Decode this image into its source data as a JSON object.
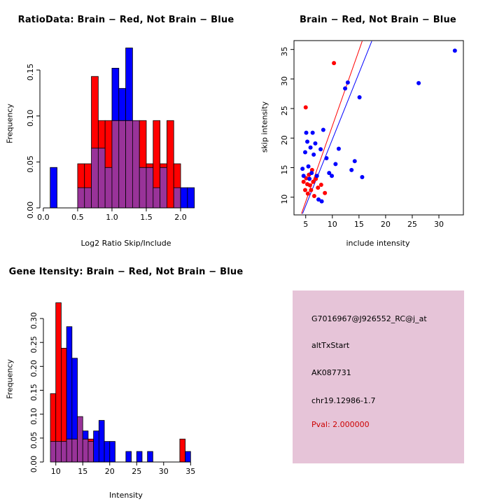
{
  "colors": {
    "brain": "#FF0000",
    "not_brain": "#0000FF",
    "overlap": "#993399",
    "axis": "#000000",
    "background": "#FFFFFF",
    "info_box_bg": "#E6C4D8",
    "pval": "#CC0000"
  },
  "chart_data": [
    {
      "id": "ratio_histogram",
      "type": "bar",
      "variant": "overlapping-histogram",
      "title": "RatioData: Brain − Red, Not Brain − Blue",
      "xlabel": "Log2 Ratio Skip/Include",
      "ylabel": "Frequency",
      "legend": "Brain = red, Not Brain = blue, overlap = purple",
      "legend_position": "none",
      "grid": false,
      "bin_start": 0.0,
      "bin_width": 0.1,
      "xlim": [
        -0.05,
        2.53
      ],
      "ylim": [
        0,
        0.182
      ],
      "xticks": [
        0.0,
        0.5,
        1.0,
        1.5,
        2.0
      ],
      "xtick_labels": [
        "0.0",
        "0.5",
        "1.0",
        "1.5",
        "2.0"
      ],
      "yticks": [
        0.0,
        0.05,
        0.1,
        0.15
      ],
      "ytick_labels": [
        "0.00",
        "0.05",
        "0.10",
        "0.15"
      ],
      "series": [
        {
          "name": "Brain",
          "color": "#FF0000",
          "values": [
            0,
            0,
            0,
            0,
            0,
            0.048,
            0.048,
            0.143,
            0.095,
            0.095,
            0.095,
            0.095,
            0.095,
            0.095,
            0.095,
            0.048,
            0.095,
            0.048,
            0.095,
            0.048,
            0,
            0,
            0
          ]
        },
        {
          "name": "Not Brain",
          "color": "#0000FF",
          "values": [
            0,
            0.044,
            0,
            0,
            0,
            0.022,
            0.022,
            0.065,
            0.065,
            0.044,
            0.152,
            0.13,
            0.174,
            0.095,
            0.044,
            0.044,
            0.022,
            0.044,
            0,
            0.022,
            0.022,
            0.022,
            0
          ]
        }
      ]
    },
    {
      "id": "intensity_scatter",
      "type": "scatter",
      "title": "Brain − Red, Not Brain − Blue",
      "xlabel": "include intensity",
      "ylabel": "skip intensity",
      "grid": false,
      "box": true,
      "xlim": [
        2.8,
        34.6
      ],
      "ylim": [
        7,
        36.5
      ],
      "xticks": [
        5,
        10,
        15,
        20,
        25,
        30
      ],
      "xtick_labels": [
        "5",
        "10",
        "15",
        "20",
        "25",
        "30"
      ],
      "yticks": [
        10,
        15,
        20,
        25,
        30,
        35
      ],
      "ytick_labels": [
        "10",
        "15",
        "20",
        "25",
        "30",
        "35"
      ],
      "series": [
        {
          "name": "Brain",
          "color": "#FF0000",
          "points": [
            [
              4.6,
              12.6
            ],
            [
              4.9,
              11.2
            ],
            [
              5.0,
              25.2
            ],
            [
              5.1,
              13.2
            ],
            [
              5.3,
              12.2
            ],
            [
              5.4,
              10.6
            ],
            [
              5.6,
              13.8
            ],
            [
              5.8,
              12.0
            ],
            [
              6.0,
              11.2
            ],
            [
              6.2,
              14.6
            ],
            [
              6.4,
              12.6
            ],
            [
              6.6,
              10.2
            ],
            [
              6.9,
              13.1
            ],
            [
              7.3,
              11.6
            ],
            [
              7.9,
              12.1
            ],
            [
              8.6,
              10.7
            ],
            [
              10.3,
              32.7
            ]
          ]
        },
        {
          "name": "Not Brain",
          "color": "#0000FF",
          "points": [
            [
              4.4,
              14.8
            ],
            [
              4.6,
              13.6
            ],
            [
              4.9,
              17.6
            ],
            [
              5.1,
              20.9
            ],
            [
              5.3,
              19.4
            ],
            [
              5.5,
              15.2
            ],
            [
              5.7,
              13.1
            ],
            [
              5.9,
              18.4
            ],
            [
              6.1,
              14.1
            ],
            [
              6.3,
              20.9
            ],
            [
              6.5,
              17.2
            ],
            [
              6.8,
              19.1
            ],
            [
              7.1,
              13.6
            ],
            [
              7.4,
              9.6
            ],
            [
              7.8,
              18.1
            ],
            [
              8.0,
              9.3
            ],
            [
              8.3,
              21.4
            ],
            [
              8.9,
              16.6
            ],
            [
              9.4,
              14.1
            ],
            [
              9.9,
              13.6
            ],
            [
              10.6,
              15.6
            ],
            [
              11.2,
              18.2
            ],
            [
              12.4,
              28.4
            ],
            [
              12.9,
              29.4
            ],
            [
              13.6,
              14.6
            ],
            [
              14.2,
              16.1
            ],
            [
              15.1,
              26.9
            ],
            [
              15.6,
              13.4
            ],
            [
              26.2,
              29.3
            ],
            [
              33.0,
              34.8
            ]
          ]
        }
      ],
      "lines": [
        {
          "name": "brain-fit-line",
          "color": "#FF0000",
          "x1": 4.2,
          "y1": 7.2,
          "x2": 15.6,
          "y2": 36.4
        },
        {
          "name": "not-brain-fit-line",
          "color": "#0000FF",
          "x1": 4.4,
          "y1": 7.2,
          "x2": 17.4,
          "y2": 36.4
        }
      ]
    },
    {
      "id": "gene_intensity_histogram",
      "type": "bar",
      "variant": "overlapping-histogram",
      "title": "Gene Itensity: Brain − Red, Not Brain − Blue",
      "xlabel": "Intensity",
      "ylabel": "Frequency",
      "legend": "Brain = red, Not Brain = blue, overlap = purple",
      "legend_position": "none",
      "grid": false,
      "bin_start": 9,
      "bin_width": 1,
      "xlim": [
        7.7,
        36.0
      ],
      "ylim": [
        0,
        0.344
      ],
      "xticks": [
        10,
        15,
        20,
        25,
        30,
        35
      ],
      "xtick_labels": [
        "10",
        "15",
        "20",
        "25",
        "30",
        "35"
      ],
      "yticks": [
        0.0,
        0.05,
        0.1,
        0.15,
        0.2,
        0.25,
        0.3
      ],
      "ytick_labels": [
        "0.00",
        "0.05",
        "0.10",
        "0.15",
        "0.20",
        "0.25",
        "0.30"
      ],
      "series": [
        {
          "name": "Brain",
          "color": "#FF0000",
          "values": [
            0.143,
            0.333,
            0.238,
            0.048,
            0.048,
            0.095,
            0.048,
            0.048,
            0,
            0,
            0,
            0,
            0,
            0,
            0,
            0,
            0,
            0,
            0,
            0,
            0,
            0,
            0,
            0,
            0.048,
            0
          ]
        },
        {
          "name": "Not Brain",
          "color": "#0000FF",
          "values": [
            0.043,
            0.043,
            0.043,
            0.283,
            0.217,
            0.095,
            0.065,
            0.043,
            0.065,
            0.087,
            0.043,
            0.043,
            0,
            0,
            0.022,
            0,
            0.022,
            0,
            0.022,
            0,
            0,
            0,
            0,
            0,
            0,
            0.022
          ]
        }
      ]
    }
  ],
  "info_panel": {
    "lines": [
      {
        "text": "G7016967@J926552_RC@j_at",
        "color": "#000000"
      },
      {
        "text": "altTxStart",
        "color": "#000000"
      },
      {
        "text": "AK087731",
        "color": "#000000"
      },
      {
        "text": "chr19.12986-1.7",
        "color": "#000000"
      },
      {
        "text": "Pval: 2.000000",
        "color": "#CC0000"
      }
    ]
  }
}
